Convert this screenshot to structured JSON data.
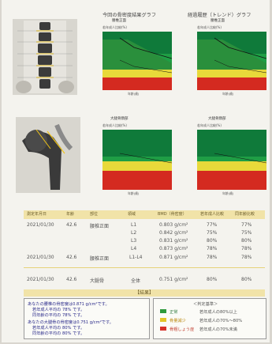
{
  "header": {
    "chart1_title": "今回の骨密度結果グラフ",
    "chart2_title": "経過履歴（トレンド）グラフ",
    "lumbar_region": "腰椎正面",
    "femur_region": "大腿骨頚部",
    "axis_x": "年齢(歳)",
    "axis_y": "若年成人比較(%)"
  },
  "table": {
    "headers": [
      "測定年月日",
      "年齢",
      "部位",
      "領域",
      "BMD（骨密度）",
      "若年成人比較",
      "同年齢比較"
    ],
    "rows": [
      [
        "2021/01/30",
        "42.6",
        "腰椎正面",
        "L1",
        "0.803 g/cm²",
        "77%",
        "77%"
      ],
      [
        "",
        "",
        "",
        "L2",
        "0.842 g/cm²",
        "75%",
        "75%"
      ],
      [
        "",
        "",
        "",
        "L3",
        "0.831 g/cm²",
        "80%",
        "80%"
      ],
      [
        "",
        "",
        "",
        "L4",
        "0.873 g/cm²",
        "78%",
        "78%"
      ],
      [
        "2021/01/30",
        "42.6",
        "腰椎正面",
        "L1-L4",
        "0.871 g/cm²",
        "78%",
        "78%"
      ],
      [
        "2021/01/30",
        "42.6",
        "大腿骨",
        "全体",
        "0.751 g/cm²",
        "80%",
        "80%"
      ]
    ]
  },
  "summary": {
    "title": "【結果】",
    "lines": [
      "あなたの腰椎の骨密度は0.871 g/cm²です。",
      "若年成人平均の 78% です。",
      "同年齢の平均の 78% です。",
      "あなたの大腿骨の骨密度は0.751 g/cm²です。",
      "若年成人平均の 80% です。",
      "同年齢の平均の 80% です。"
    ],
    "legend_title": "＜判定基準＞",
    "legend": [
      {
        "label": "正常",
        "text": "若年成人の80%以上",
        "color": "#2e9a3c"
      },
      {
        "label": "骨量減少",
        "text": "若年成人の70%〜80%",
        "color": "#e2c52a"
      },
      {
        "label": "骨粗しょう症",
        "text": "若年成人の70%未満",
        "color": "#d6332a"
      }
    ]
  },
  "colors": {
    "green_dark": "#0f7a3a",
    "green": "#1f9e45",
    "yellow": "#e8d93a",
    "red": "#d42a20",
    "accent": "#f1e3a8"
  },
  "icons": [
    "spine-xray-image",
    "femur-xray-image"
  ]
}
